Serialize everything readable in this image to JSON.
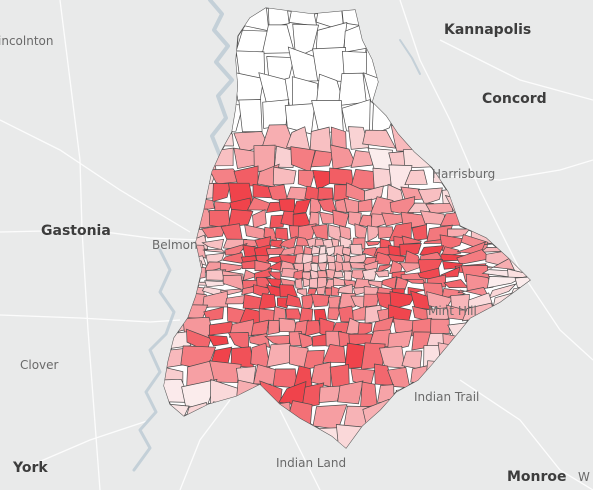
{
  "map": {
    "place_labels": {
      "lincolnton": "incolnton",
      "kannapolis": "Kannapolis",
      "concord": "Concord",
      "harrisburg": "Harrisburg",
      "gastonia": "Gastonia",
      "belmont": "Belmon",
      "clover": "Clover",
      "mint_hill": "Mint Hill",
      "indian_trail": "Indian Trail",
      "indian_land": "Indian Land",
      "york": "York",
      "monroe": "Monroe",
      "edge_w": "W"
    },
    "colors": {
      "background": "#e9eaea",
      "water": "#c4d0d8",
      "tract_border": "#4b4b4b",
      "low": "#fbeeee",
      "high": "#f0434b"
    }
  }
}
